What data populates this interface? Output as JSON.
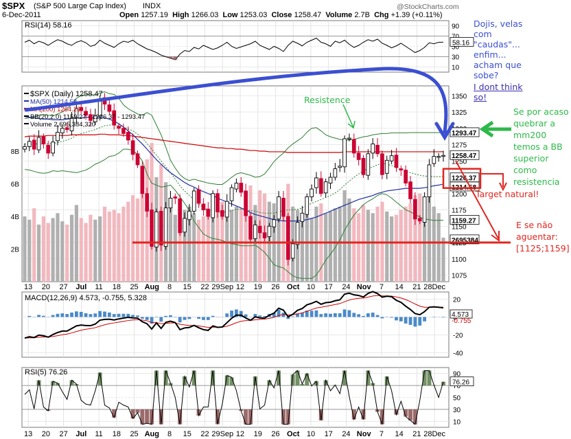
{
  "header": {
    "symbol": "$SPX",
    "name": "(S&P 500 Large Cap Index)",
    "exchange": "INDX",
    "date": "6-Dec-2011",
    "open_label": "Open",
    "open": "1257.19",
    "high_label": "High",
    "high": "1266.03",
    "low_label": "Low",
    "low": "1253.03",
    "close_label": "Close",
    "close": "1258.47",
    "volume_label": "Volume",
    "volume": "2.7B",
    "chg_label": "Chg",
    "chg": "+1.39 (+0.11%)",
    "watermark": "@StockCharts.com"
  },
  "colors": {
    "up": "#000000",
    "down": "#cc0033",
    "ma50": "#1f2f9f",
    "ma200": "#cc0000",
    "bb": "#2e7d32",
    "macd": "#000000",
    "signal": "#cc0000",
    "hist": "#4a8ac8",
    "annotation_blue": "#3b4fd1",
    "annotation_red": "#e0261f",
    "annotation_green": "#2eb84a"
  },
  "chart_data": [
    {
      "type": "line",
      "title": "RSI(14) 58.16",
      "panel": "rsi14",
      "ylim": [
        0,
        100
      ],
      "y_ticks": [
        90,
        70,
        50,
        30,
        10
      ],
      "levels": [
        70,
        30
      ],
      "last_value": 58.16,
      "values": [
        58,
        62,
        55,
        60,
        57,
        52,
        58,
        63,
        60,
        55,
        52,
        58,
        61,
        57,
        50,
        53,
        62,
        56,
        52,
        48,
        55,
        60,
        58,
        62,
        55,
        50,
        45,
        42,
        38,
        33,
        30,
        27,
        24,
        35,
        42,
        40,
        48,
        45,
        52,
        48,
        44,
        47,
        52,
        58,
        50,
        46,
        49,
        52,
        55,
        60,
        52,
        48,
        44,
        50,
        46,
        40,
        52,
        60,
        56,
        51,
        58,
        62,
        66,
        58,
        55,
        50,
        60,
        57,
        62,
        54,
        48,
        52,
        58,
        63,
        60,
        64,
        56,
        52,
        47,
        51,
        56,
        50,
        44,
        38,
        42,
        48,
        57,
        55,
        58,
        58.16
      ]
    },
    {
      "type": "line",
      "title": "$SPX (Daily) 1258.47",
      "panel": "price",
      "x_labels": [
        "13",
        "20",
        "27",
        "Jul",
        "11",
        "18",
        "25",
        "Aug",
        "8",
        "15",
        "22",
        "29Sep",
        "12",
        "19",
        "26",
        "Oct",
        "10",
        "17",
        "24",
        "Nov",
        "7",
        "14",
        "21",
        "28Dec"
      ],
      "ylim": [
        1065,
        1365
      ],
      "y_ticks": [
        1350,
        1325,
        1300,
        1275,
        1250,
        1225,
        1200,
        1175,
        1150,
        1125,
        1100,
        1075
      ],
      "legend": {
        "price": "$SPX (Daily) 1258.47",
        "ma50": "MA(50) 1214.58",
        "ma200": "MA(200) 1264.23",
        "bb": "BB(20,2.0) 1159.27 - 1226.37 - 1293.47",
        "volume": "Volume 2,695,384,320"
      },
      "close": [
        1272,
        1280,
        1268,
        1286,
        1276,
        1262,
        1279,
        1294,
        1300,
        1298,
        1316,
        1330,
        1327,
        1320,
        1312,
        1319,
        1345,
        1337,
        1326,
        1305,
        1300,
        1292,
        1282,
        1260,
        1244,
        1200,
        1173,
        1119,
        1172,
        1121,
        1178,
        1193,
        1193,
        1140,
        1162,
        1173,
        1204,
        1185,
        1175,
        1165,
        1200,
        1172,
        1165,
        1188,
        1209,
        1216,
        1202,
        1166,
        1130,
        1152,
        1140,
        1132,
        1150,
        1160,
        1195,
        1165,
        1099,
        1123,
        1156,
        1170,
        1195,
        1207,
        1224,
        1200,
        1218,
        1225,
        1238,
        1242,
        1284,
        1285,
        1262,
        1252,
        1229,
        1261,
        1276,
        1261,
        1229,
        1251,
        1258,
        1240,
        1236,
        1216,
        1192,
        1161,
        1158,
        1195,
        1244,
        1257,
        1257,
        1258.47
      ],
      "ma50": [
        1318,
        1317,
        1316,
        1315,
        1314,
        1314,
        1313,
        1313,
        1313,
        1314,
        1315,
        1316,
        1316,
        1317,
        1317,
        1317,
        1317,
        1316,
        1314,
        1311,
        1307,
        1302,
        1296,
        1290,
        1283,
        1276,
        1268,
        1260,
        1252,
        1245,
        1238,
        1232,
        1227,
        1222,
        1217,
        1213,
        1210,
        1206,
        1203,
        1200,
        1197,
        1193,
        1190,
        1187,
        1184,
        1181,
        1178,
        1175,
        1171,
        1168,
        1166,
        1164,
        1162,
        1160,
        1159,
        1158,
        1158,
        1158,
        1158,
        1159,
        1160,
        1162,
        1164,
        1167,
        1170,
        1173,
        1176,
        1179,
        1182,
        1185,
        1188,
        1191,
        1193,
        1195,
        1197,
        1200,
        1202,
        1204,
        1205,
        1206,
        1207,
        1208,
        1208,
        1208,
        1208,
        1209,
        1210,
        1212,
        1213,
        1214.58
      ],
      "ma200": [
        1287,
        1288,
        1288,
        1288,
        1288,
        1289,
        1289,
        1289,
        1289,
        1289,
        1290,
        1290,
        1290,
        1290,
        1290,
        1290,
        1291,
        1291,
        1290,
        1290,
        1290,
        1289,
        1289,
        1288,
        1287,
        1286,
        1285,
        1284,
        1283,
        1282,
        1281,
        1280,
        1279,
        1278,
        1277,
        1276,
        1275,
        1274,
        1273,
        1272,
        1271,
        1270,
        1270,
        1269,
        1269,
        1268,
        1268,
        1267,
        1266,
        1266,
        1265,
        1265,
        1264,
        1264,
        1264,
        1264,
        1263,
        1263,
        1263,
        1263,
        1263,
        1263,
        1263,
        1263,
        1263,
        1263,
        1263,
        1263,
        1264,
        1264,
        1264,
        1264,
        1264,
        1264,
        1264,
        1264,
        1264,
        1264,
        1264,
        1264,
        1264,
        1264,
        1264,
        1264,
        1264,
        1264,
        1264,
        1264,
        1264,
        1264.23
      ],
      "bb_upper": [
        1315,
        1316,
        1318,
        1320,
        1321,
        1320,
        1319,
        1322,
        1325,
        1330,
        1337,
        1346,
        1350,
        1352,
        1352,
        1351,
        1354,
        1356,
        1353,
        1352,
        1346,
        1336,
        1330,
        1326,
        1322,
        1320,
        1324,
        1320,
        1305,
        1290,
        1271,
        1251,
        1239,
        1229,
        1223,
        1220,
        1222,
        1220,
        1218,
        1216,
        1215,
        1214,
        1214,
        1219,
        1225,
        1230,
        1232,
        1230,
        1228,
        1225,
        1226,
        1230,
        1239,
        1249,
        1256,
        1262,
        1270,
        1276,
        1281,
        1286,
        1294,
        1300,
        1301,
        1296,
        1290,
        1287,
        1285,
        1283,
        1282,
        1282,
        1283,
        1285,
        1287,
        1288,
        1290,
        1291,
        1292,
        1292,
        1293,
        1293,
        1293,
        1293,
        1293.47,
        1293.47,
        1293.47,
        1293.47,
        1293.47,
        1293.47,
        1293.47,
        1293.47
      ],
      "bb_mid": [
        1276,
        1276,
        1276,
        1276,
        1276,
        1276,
        1277,
        1278,
        1280,
        1282,
        1285,
        1289,
        1292,
        1294,
        1296,
        1298,
        1301,
        1304,
        1305,
        1305,
        1304,
        1302,
        1299,
        1296,
        1291,
        1285,
        1277,
        1268,
        1259,
        1250,
        1241,
        1232,
        1222,
        1212,
        1204,
        1197,
        1190,
        1184,
        1178,
        1175,
        1173,
        1172,
        1171,
        1172,
        1174,
        1176,
        1176,
        1175,
        1174,
        1173,
        1171,
        1170,
        1170,
        1170,
        1172,
        1174,
        1175,
        1175,
        1176,
        1178,
        1182,
        1185,
        1188,
        1191,
        1194,
        1197,
        1201,
        1206,
        1213,
        1219,
        1225,
        1230,
        1235,
        1238,
        1241,
        1244,
        1246,
        1245,
        1243,
        1240,
        1237,
        1234,
        1232,
        1230,
        1228,
        1227,
        1226,
        1226,
        1226,
        1226.37
      ],
      "bb_lower": [
        1237,
        1236,
        1234,
        1232,
        1231,
        1232,
        1235,
        1234,
        1235,
        1234,
        1233,
        1232,
        1234,
        1236,
        1240,
        1245,
        1248,
        1252,
        1257,
        1258,
        1262,
        1268,
        1268,
        1266,
        1260,
        1250,
        1230,
        1216,
        1213,
        1210,
        1211,
        1213,
        1205,
        1195,
        1185,
        1174,
        1158,
        1148,
        1138,
        1134,
        1131,
        1130,
        1128,
        1125,
        1123,
        1122,
        1120,
        1120,
        1120,
        1121,
        1116,
        1110,
        1101,
        1091,
        1088,
        1086,
        1080,
        1074,
        1071,
        1070,
        1070,
        1070,
        1075,
        1086,
        1098,
        1107,
        1117,
        1129,
        1144,
        1156,
        1167,
        1175,
        1183,
        1188,
        1192,
        1197,
        1200,
        1198,
        1193,
        1187,
        1181,
        1175,
        1172,
        1168,
        1164,
        1161,
        1160,
        1159,
        1159,
        1159.27
      ],
      "volume": [
        4,
        3.8,
        4.5,
        3.5,
        4,
        3.6,
        3.9,
        4.2,
        3.7,
        3.5,
        4.1,
        4.7,
        3.9,
        3.6,
        4.1,
        3.8,
        4,
        4.6,
        4.3,
        4.4,
        4.2,
        4.6,
        4.9,
        5.3,
        5.1,
        6.2,
        7.5,
        8.5,
        6.4,
        7.2,
        6.1,
        4.8,
        4.1,
        3.9,
        4.4,
        4.6,
        4.2,
        3.8,
        4,
        4.5,
        4.8,
        4.7,
        4.9,
        4.3,
        4.4,
        4.6,
        4.5,
        5.2,
        5.9,
        4.7,
        5.6,
        5.4,
        4.9,
        4.8,
        5.2,
        5.1,
        6,
        4.6,
        4.4,
        4.2,
        4.3,
        3.9,
        4.6,
        4.8,
        4.2,
        4.3,
        4.5,
        4.6,
        5.6,
        5.1,
        4.5,
        4.2,
        4.7,
        4.4,
        4.2,
        4.6,
        4.9,
        4.3,
        4,
        4.1,
        4.4,
        4.6,
        4.8,
        5.3,
        5.4,
        5.1,
        6.1,
        4.6,
        4.2,
        2.7
      ]
    },
    {
      "type": "line",
      "title": "MACD(12,26,9) 4.573, -0.755, 5.328",
      "panel": "macd",
      "ylim": [
        -45,
        28
      ],
      "y_ticks": [
        20,
        0,
        -20,
        -40
      ],
      "last_values": {
        "macd": 4.573,
        "signal": -0.755,
        "hist": 5.328
      }
    },
    {
      "type": "line",
      "title": "RSI(5) 76.26",
      "panel": "rsi5",
      "ylim": [
        0,
        100
      ],
      "y_ticks": [
        90,
        70,
        50,
        30,
        10
      ],
      "levels": [
        70,
        30
      ],
      "last_value": 76.26
    }
  ],
  "scale_labels": {
    "rsi14_last": "58.16",
    "upper_band": "1293.47",
    "close_badge": "1258.47",
    "mid_band": "1226.37",
    "ma50_badge": "1214.58",
    "lower_band": "1159.27",
    "volume_last": "2695384",
    "macd_last": "4.573",
    "signal_last": "-0.755",
    "rsi5_last": "76.26",
    "volume_ticks": [
      "8B",
      "6B",
      "4B",
      "2B"
    ]
  },
  "annotations": {
    "blue_text": [
      "Dojis, velas",
      "com",
      "\"caudas\"...",
      "enfim...",
      "acham que",
      "sobe?"
    ],
    "blue_link": [
      "I dont think",
      "so!"
    ],
    "resistence": "Resistence",
    "green_text": [
      "Se por acaso",
      "quebrar a",
      "mm200",
      "temos a BB",
      "superior",
      "como",
      "resistencia"
    ],
    "target": "Target natural!",
    "red_text": [
      "E se não",
      "aguentar:",
      "[1125;1159]"
    ]
  }
}
